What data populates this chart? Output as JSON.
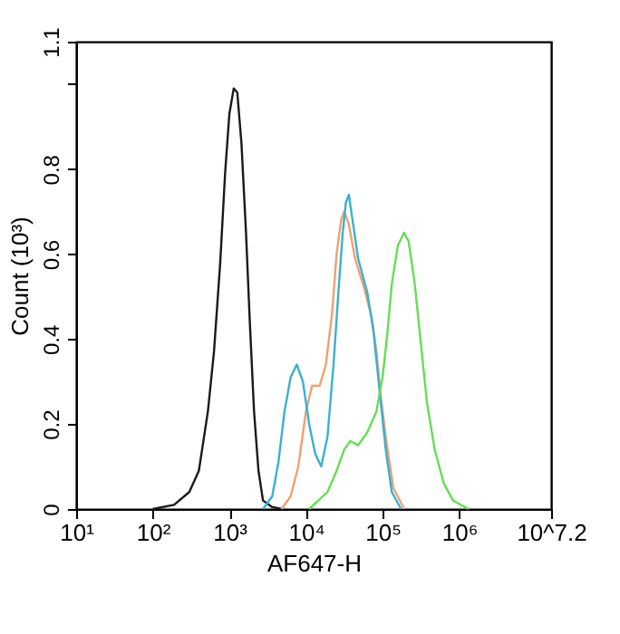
{
  "chart_data": {
    "type": "line",
    "xlabel": "AF647-H",
    "ylabel": "Count (10³)",
    "log": "x",
    "grid": false,
    "legend": false,
    "marker": "none",
    "line_style": "solid",
    "xlim": [
      10,
      15848932
    ],
    "xticks": [
      {
        "value": 10,
        "label": "10¹"
      },
      {
        "value": 100,
        "label": "10²"
      },
      {
        "value": 1000,
        "label": "10³"
      },
      {
        "value": 10000,
        "label": "10⁴"
      },
      {
        "value": 100000,
        "label": "10⁵"
      },
      {
        "value": 1000000,
        "label": "10⁶"
      },
      {
        "value": 15848932,
        "label": "10^7.2"
      }
    ],
    "ylim": [
      0,
      1.1
    ],
    "yticks": [
      0,
      0.2,
      0.4,
      0.6,
      0.8,
      {
        "value": 1.0,
        "label": null
      },
      1.1
    ],
    "series": [
      {
        "color": "#1a1a1a",
        "x": [
          100,
          190,
          300,
          400,
          525,
          630,
          760,
          880,
          1000,
          1140,
          1270,
          1440,
          1650,
          1850,
          2100,
          2400,
          2750,
          3600,
          4800
        ],
        "values": [
          0,
          0.01,
          0.04,
          0.09,
          0.23,
          0.37,
          0.58,
          0.79,
          0.93,
          0.99,
          0.98,
          0.86,
          0.65,
          0.44,
          0.23,
          0.09,
          0.02,
          0.005,
          0
        ]
      },
      {
        "color": "#f0a070",
        "x": [
          4790,
          6310,
          7940,
          10000,
          12000,
          15100,
          18200,
          21900,
          25100,
          28800,
          31600,
          36300,
          43700,
          57500,
          72400,
          83200,
          95500,
          112000,
          138000,
          191000
        ],
        "values": [
          0,
          0.03,
          0.1,
          0.23,
          0.29,
          0.29,
          0.34,
          0.46,
          0.6,
          0.68,
          0.7,
          0.67,
          0.59,
          0.52,
          0.45,
          0.37,
          0.26,
          0.16,
          0.05,
          0
        ]
      },
      {
        "color": "#3ab0d0",
        "x": [
          2750,
          3630,
          4370,
          5250,
          6310,
          7590,
          9120,
          11000,
          13200,
          15800,
          19100,
          22900,
          26500,
          30200,
          33100,
          36300,
          39800,
          47900,
          63100,
          75900,
          91200,
          110000,
          132000,
          174000
        ],
        "values": [
          0,
          0.03,
          0.11,
          0.23,
          0.31,
          0.34,
          0.3,
          0.2,
          0.13,
          0.1,
          0.17,
          0.34,
          0.51,
          0.65,
          0.72,
          0.74,
          0.69,
          0.59,
          0.51,
          0.42,
          0.28,
          0.14,
          0.04,
          0
        ]
      },
      {
        "color": "#66dd55",
        "x": [
          11000,
          14500,
          19100,
          25100,
          31600,
          38000,
          47900,
          63100,
          83200,
          100000,
          115000,
          132000,
          158000,
          191000,
          219000,
          263000,
          316000,
          380000,
          479000,
          631000,
          832000,
          1320000
        ],
        "values": [
          0,
          0.02,
          0.04,
          0.09,
          0.14,
          0.16,
          0.15,
          0.18,
          0.23,
          0.31,
          0.41,
          0.53,
          0.62,
          0.65,
          0.63,
          0.53,
          0.39,
          0.25,
          0.14,
          0.06,
          0.02,
          0
        ]
      }
    ]
  }
}
